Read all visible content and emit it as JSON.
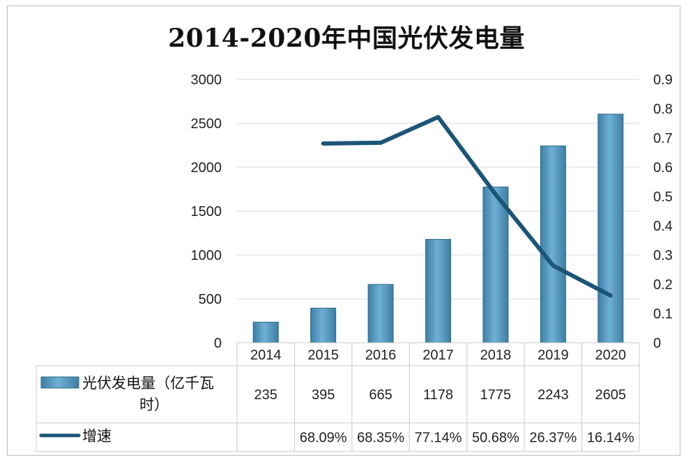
{
  "chart_data": {
    "type": "bar",
    "title": "2014-2020年中国光伏发电量",
    "categories": [
      "2014",
      "2015",
      "2016",
      "2017",
      "2018",
      "2019",
      "2020"
    ],
    "series": [
      {
        "name": "光伏发电量（亿千瓦时）",
        "type": "bar",
        "axis": "left",
        "values": [
          235,
          395,
          665,
          1178,
          1775,
          2243,
          2605
        ],
        "color": "#5b9bc0"
      },
      {
        "name": "增速",
        "type": "line",
        "axis": "right",
        "values": [
          null,
          0.6809,
          0.6835,
          0.7714,
          0.5068,
          0.2637,
          0.1614
        ],
        "labels": [
          "",
          "68.09%",
          "68.35%",
          "77.14%",
          "50.68%",
          "26.37%",
          "16.14%"
        ],
        "color": "#1b5577"
      }
    ],
    "y_left": {
      "ylim": [
        0,
        3000
      ],
      "ticks": [
        "0",
        "500",
        "1000",
        "1500",
        "2000",
        "2500",
        "3000"
      ]
    },
    "y_right": {
      "ylim": [
        0,
        0.9
      ],
      "ticks": [
        "0",
        "0.1",
        "0.2",
        "0.3",
        "0.4",
        "0.5",
        "0.6",
        "0.7",
        "0.8",
        "0.9"
      ]
    },
    "grid": true,
    "legend": "data-table"
  },
  "table": {
    "bar_row_label_line1": "光伏发电量（亿千瓦",
    "bar_row_label_line2": "时）",
    "line_row_label": "增速"
  }
}
